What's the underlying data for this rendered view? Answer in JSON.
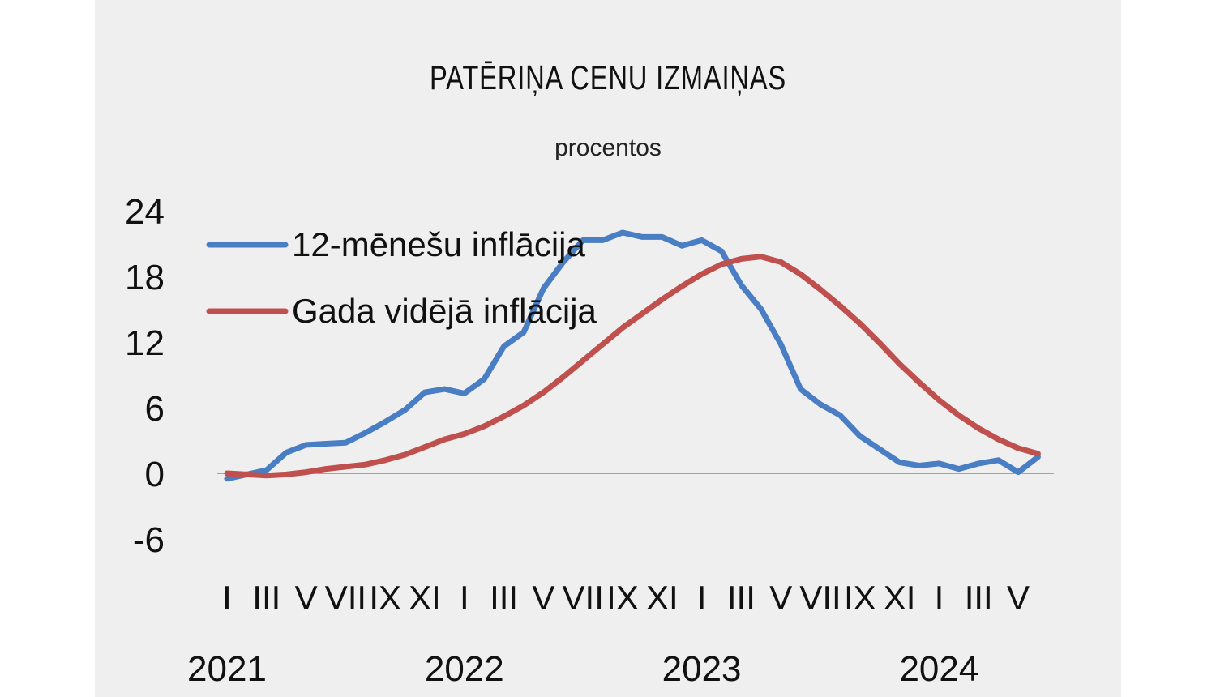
{
  "title": "PATĒRIŅA CENU IZMAIŅAS",
  "subtitle": "procentos",
  "chart_data": {
    "type": "line",
    "x": [
      "I",
      "II",
      "III",
      "IV",
      "V",
      "VI",
      "VII",
      "VIII",
      "IX",
      "X",
      "XI",
      "XII",
      "I",
      "II",
      "III",
      "IV",
      "V",
      "VI",
      "VII",
      "VIII",
      "IX",
      "X",
      "XI",
      "XII",
      "I",
      "II",
      "III",
      "IV",
      "V",
      "VI",
      "VII",
      "VIII",
      "IX",
      "X",
      "XI",
      "XII",
      "I",
      "II",
      "III",
      "IV",
      "V",
      "VI"
    ],
    "x_tick_labels": [
      "I",
      "III",
      "V",
      "VII",
      "IX",
      "XI",
      "I",
      "III",
      "V",
      "VII",
      "IX",
      "XI",
      "I",
      "III",
      "V",
      "VII",
      "IX",
      "XI",
      "I",
      "III",
      "V"
    ],
    "year_labels": [
      "2021",
      "2022",
      "2023",
      "2024"
    ],
    "yticks": [
      "24",
      "18",
      "12",
      "6",
      "0",
      "-6"
    ],
    "ylim": [
      -6,
      24
    ],
    "legend_position": "top-left",
    "series": [
      {
        "name": "12-mēnešu inflācija",
        "color": "#4a7ec4",
        "values": [
          -0.5,
          -0.1,
          0.3,
          1.9,
          2.6,
          2.7,
          2.8,
          3.7,
          4.7,
          5.8,
          7.4,
          7.7,
          7.3,
          8.6,
          11.6,
          12.9,
          16.9,
          19.3,
          21.3,
          21.3,
          22.0,
          21.6,
          21.6,
          20.8,
          21.3,
          20.3,
          17.2,
          15.0,
          11.8,
          7.7,
          6.3,
          5.3,
          3.4,
          2.2,
          1.0,
          0.7,
          0.9,
          0.4,
          0.9,
          1.2,
          0.1,
          1.5
        ]
      },
      {
        "name": "Gada vidējā inflācija",
        "color": "#c0504d",
        "values": [
          0.0,
          -0.1,
          -0.2,
          -0.1,
          0.1,
          0.4,
          0.6,
          0.8,
          1.2,
          1.7,
          2.4,
          3.1,
          3.6,
          4.3,
          5.2,
          6.2,
          7.4,
          8.8,
          10.3,
          11.8,
          13.3,
          14.6,
          15.9,
          17.1,
          18.2,
          19.1,
          19.6,
          19.8,
          19.3,
          18.2,
          16.8,
          15.3,
          13.7,
          11.9,
          10.0,
          8.3,
          6.7,
          5.3,
          4.1,
          3.1,
          2.3,
          1.8
        ]
      }
    ]
  }
}
